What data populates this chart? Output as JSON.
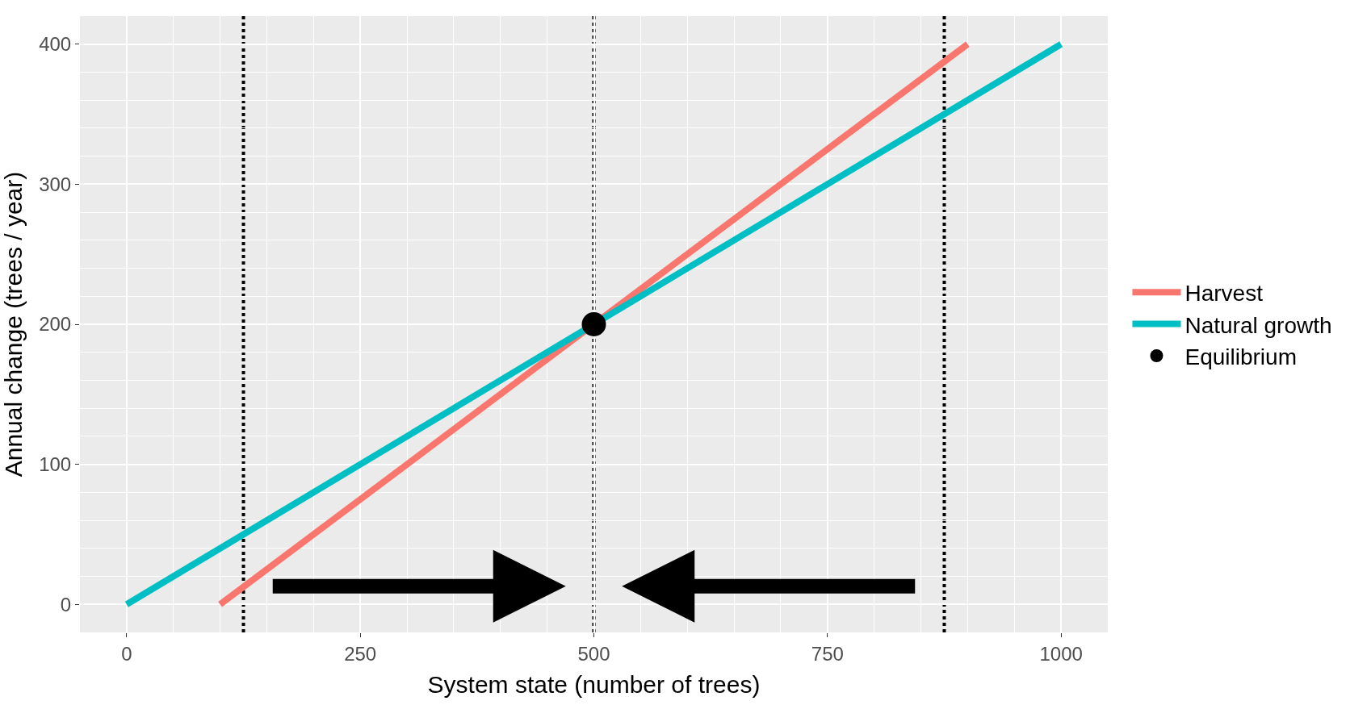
{
  "chart_data": {
    "type": "line",
    "xlabel": "System state (number of trees)",
    "ylabel": "Annual change (trees / year)",
    "xlim": [
      -50,
      1050
    ],
    "xticks": [
      0,
      250,
      500,
      750,
      1000
    ],
    "ylim": [
      -20,
      420
    ],
    "yticks": [
      0,
      100,
      200,
      300,
      400
    ],
    "series": [
      {
        "name": "Harvest",
        "color": "#f8766d",
        "x": [
          100,
          900
        ],
        "values": [
          0,
          400
        ]
      },
      {
        "name": "Natural growth",
        "color": "#00bfc4",
        "x": [
          0,
          1000
        ],
        "values": [
          0,
          400
        ]
      },
      {
        "name": "Equilibrium",
        "type": "scatter",
        "color": "#000000",
        "x": [
          500
        ],
        "values": [
          200
        ],
        "marker": "circle"
      }
    ],
    "ref_lines": [
      {
        "axis": "x",
        "value": 125,
        "color": "#000000",
        "line_style": "dotted"
      },
      {
        "axis": "x",
        "value": 500,
        "color": "#000000",
        "line_style": "dotted"
      },
      {
        "axis": "x",
        "value": 875,
        "color": "#000000",
        "line_style": "dotted"
      }
    ],
    "grid": true,
    "legend": "right"
  }
}
